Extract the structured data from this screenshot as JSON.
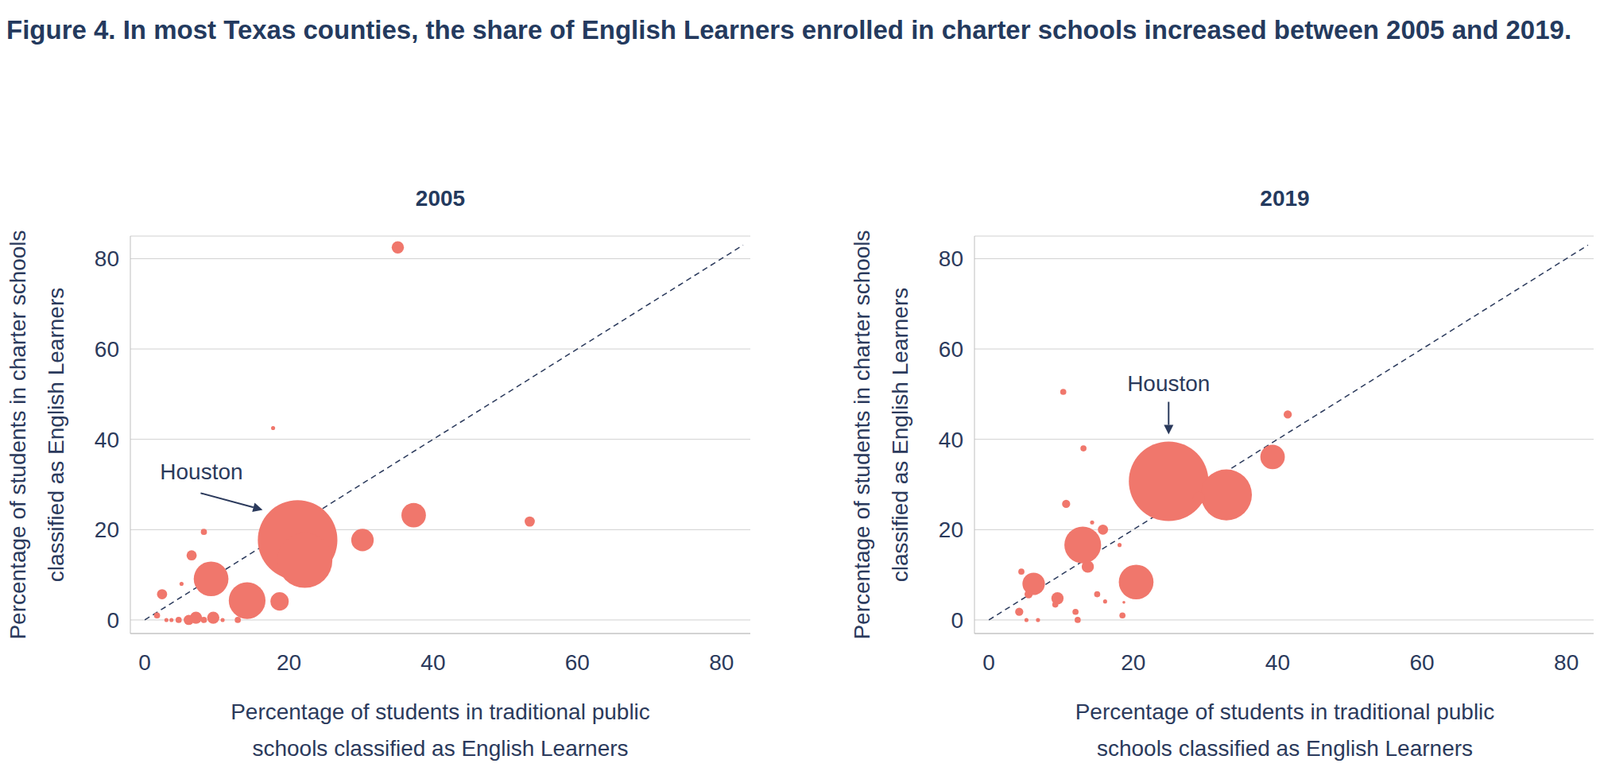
{
  "title": "Figure 4. In most Texas counties, the share of English Learners enrolled in charter schools increased between 2005 and 2019.",
  "chart_data": [
    {
      "type": "scatter",
      "title": "2005",
      "x_label": [
        "Percentage of students in traditional public",
        "schools classified as English Learners"
      ],
      "y_label": [
        "Percentage of students in charter schools",
        "classified as English Learners"
      ],
      "xlim": [
        -2,
        84
      ],
      "ylim": [
        -3,
        85
      ],
      "xticks": [
        0,
        20,
        40,
        60,
        80
      ],
      "yticks": [
        0,
        20,
        40,
        60,
        80
      ],
      "grid": true,
      "color": "#f0776c",
      "x": [
        35.1,
        17.8,
        8.2,
        6.5,
        2.4,
        5.1,
        9.2,
        14.2,
        18.7,
        21.2,
        22.2,
        30.2,
        37.3,
        53.4,
        1.7,
        3.0,
        3.7,
        4.7,
        6.1,
        7.1,
        8.2,
        9.5,
        10.8,
        12.9
      ],
      "y": [
        82.5,
        42.5,
        19.5,
        14.3,
        5.7,
        8.0,
        9.1,
        4.3,
        4.1,
        17.7,
        13.2,
        17.7,
        23.2,
        21.8,
        1.0,
        0,
        0,
        0,
        0,
        0.5,
        0,
        0.5,
        0,
        0
      ],
      "sizes": [
        36,
        4,
        9,
        25,
        25,
        4,
        289,
        324,
        81,
        1521,
        729,
        121,
        144,
        25,
        9,
        4,
        4,
        9,
        25,
        36,
        9,
        36,
        4,
        9
      ],
      "diagonal": {
        "x": [
          0,
          83
        ],
        "y": [
          0,
          83
        ],
        "line_style": "dashed"
      },
      "annotations": [
        {
          "text": "Houston",
          "x": 21.2,
          "y": 17.7
        }
      ]
    },
    {
      "type": "scatter",
      "title": "2019",
      "x_label": [
        "Percentage of students in traditional public",
        "schools classified as English Learners"
      ],
      "y_label": [
        "Percentage of students in charter schools",
        "classified as English Learners"
      ],
      "xlim": [
        -2,
        84
      ],
      "ylim": [
        -3,
        85
      ],
      "xticks": [
        0,
        20,
        40,
        60,
        80
      ],
      "yticks": [
        0,
        20,
        40,
        60,
        80
      ],
      "grid": true,
      "color": "#f0776c",
      "x": [
        10.3,
        10.7,
        13.1,
        4.5,
        41.4,
        39.3,
        24.9,
        32.9,
        29.1,
        15.8,
        14.3,
        13.0,
        13.7,
        18.1,
        20.4,
        6.2,
        9.5,
        5.5,
        15.0,
        16.1,
        18.5,
        18.7,
        4.2,
        5.2,
        6.8,
        9.2,
        12.3,
        12.0
      ],
      "y": [
        50.5,
        25.7,
        38.0,
        10.7,
        45.5,
        36.1,
        30.7,
        27.7,
        27.0,
        20.0,
        21.6,
        16.6,
        11.8,
        16.6,
        8.4,
        8.0,
        4.8,
        5.7,
        5.7,
        4.1,
        1.0,
        3.9,
        1.8,
        0,
        0,
        3.4,
        0,
        1.8
      ],
      "sizes": [
        9,
        16,
        9,
        9,
        16,
        144,
        1521,
        625,
        36,
        25,
        4,
        324,
        36,
        4,
        289,
        121,
        36,
        16,
        9,
        4,
        9,
        2,
        16,
        4,
        4,
        9,
        9,
        9
      ],
      "diagonal": {
        "x": [
          0,
          83
        ],
        "y": [
          0,
          83
        ],
        "line_style": "dashed"
      },
      "annotations": [
        {
          "text": "Houston",
          "x": 24.9,
          "y": 30.7
        }
      ]
    }
  ]
}
